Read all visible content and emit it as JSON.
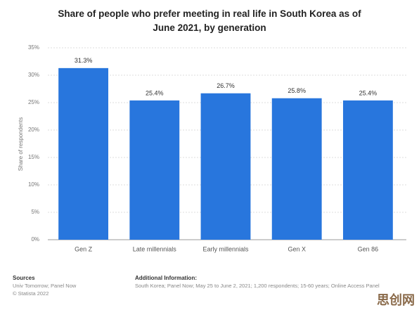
{
  "chart_data": {
    "type": "bar",
    "title": "Share of people who prefer meeting in real life in South Korea as of June 2021, by generation",
    "y_label": "Share of respondents",
    "categories": [
      "Gen Z",
      "Late millennials",
      "Early millennials",
      "Gen X",
      "Gen 86"
    ],
    "values": [
      31.3,
      25.4,
      26.7,
      25.8,
      25.4
    ],
    "value_labels": [
      "31.3%",
      "25.4%",
      "26.7%",
      "25.8%",
      "25.4%"
    ],
    "color": "#2876dd",
    "ylim": [
      0,
      35
    ],
    "yticks": [
      {
        "value": 0,
        "label": "0%"
      },
      {
        "value": 5,
        "label": "5%"
      },
      {
        "value": 10,
        "label": "10%"
      },
      {
        "value": 15,
        "label": "15%"
      },
      {
        "value": 20,
        "label": "20%"
      },
      {
        "value": 25,
        "label": "25%"
      },
      {
        "value": 30,
        "label": "30%"
      },
      {
        "value": 35,
        "label": "35%"
      }
    ],
    "grid": true,
    "sources_heading": "Sources",
    "sources": [
      "Univ Tomorrow; Panel Now",
      "© Statista 2022"
    ],
    "additional_heading": "Additional Information:",
    "additional_info": "South Korea; Panel Now; May 25 to June 2, 2021; 1,200 respondents; 15-60 years; Online Access Panel",
    "watermark": "思创网"
  }
}
